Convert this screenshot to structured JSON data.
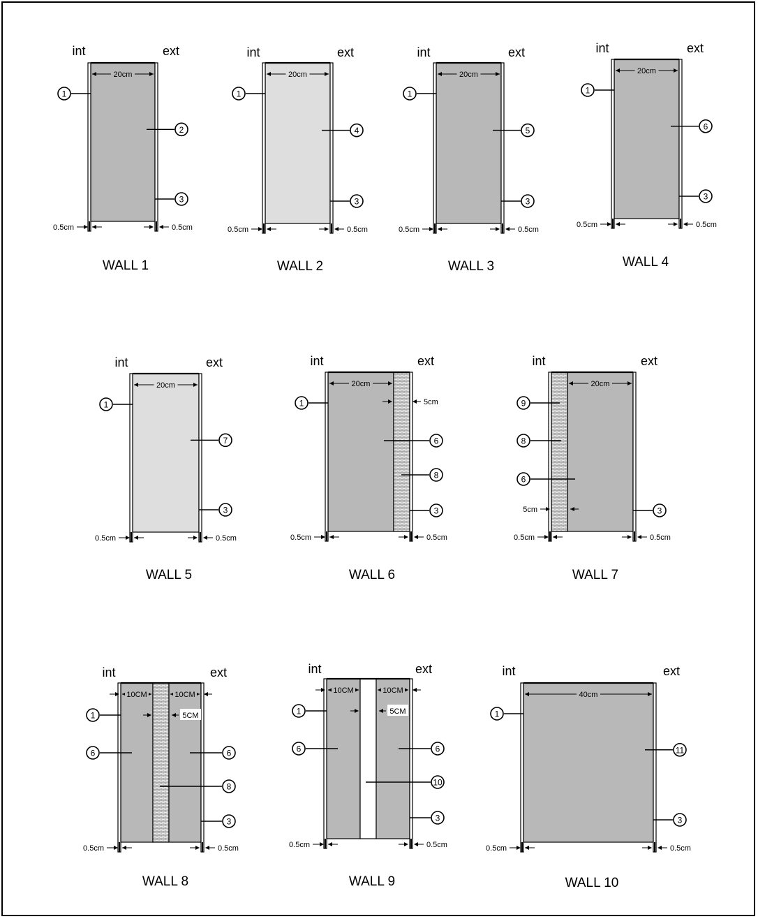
{
  "colors": {
    "dark_fill": "#b8b8b8",
    "light_fill": "#dedede",
    "insulation_fill": "#ececec",
    "line": "#000000"
  },
  "labels": {
    "int": "int",
    "ext": "ext",
    "plaster": "0.5cm"
  },
  "walls": [
    {
      "title": "WALL 1",
      "layers": [
        {
          "width": "20cm",
          "material": "dark"
        }
      ],
      "callouts": [
        "1",
        "2",
        "3"
      ]
    },
    {
      "title": "WALL 2",
      "layers": [
        {
          "width": "20cm",
          "material": "light"
        }
      ],
      "callouts": [
        "1",
        "4",
        "3"
      ]
    },
    {
      "title": "WALL 3",
      "layers": [
        {
          "width": "20cm",
          "material": "dark"
        }
      ],
      "callouts": [
        "1",
        "5",
        "3"
      ]
    },
    {
      "title": "WALL 4",
      "layers": [
        {
          "width": "20cm",
          "material": "dark"
        }
      ],
      "callouts": [
        "1",
        "6",
        "3"
      ]
    },
    {
      "title": "WALL 5",
      "layers": [
        {
          "width": "20cm",
          "material": "light"
        }
      ],
      "callouts": [
        "1",
        "7",
        "3"
      ]
    },
    {
      "title": "WALL 6",
      "layers": [
        {
          "width": "20cm",
          "material": "dark"
        },
        {
          "width": "5cm",
          "material": "insulation"
        }
      ],
      "callouts": [
        "1",
        "6",
        "8",
        "3"
      ]
    },
    {
      "title": "WALL 7",
      "layers": [
        {
          "width": "5cm",
          "material": "insulation"
        },
        {
          "width": "20cm",
          "material": "dark"
        }
      ],
      "callouts": [
        "9",
        "8",
        "6",
        "3"
      ]
    },
    {
      "title": "WALL 8",
      "layers": [
        {
          "width": "10CM",
          "material": "dark"
        },
        {
          "width": "5CM",
          "material": "insulation"
        },
        {
          "width": "10CM",
          "material": "dark"
        }
      ],
      "callouts": [
        "1",
        "6",
        "6",
        "8",
        "3"
      ]
    },
    {
      "title": "WALL 9",
      "layers": [
        {
          "width": "10CM",
          "material": "dark"
        },
        {
          "width": "5CM",
          "material": "air"
        },
        {
          "width": "10CM",
          "material": "dark"
        }
      ],
      "callouts": [
        "1",
        "6",
        "6",
        "10",
        "3"
      ]
    },
    {
      "title": "WALL 10",
      "layers": [
        {
          "width": "40cm",
          "material": "dark"
        }
      ],
      "callouts": [
        "1",
        "11",
        "3"
      ]
    }
  ]
}
